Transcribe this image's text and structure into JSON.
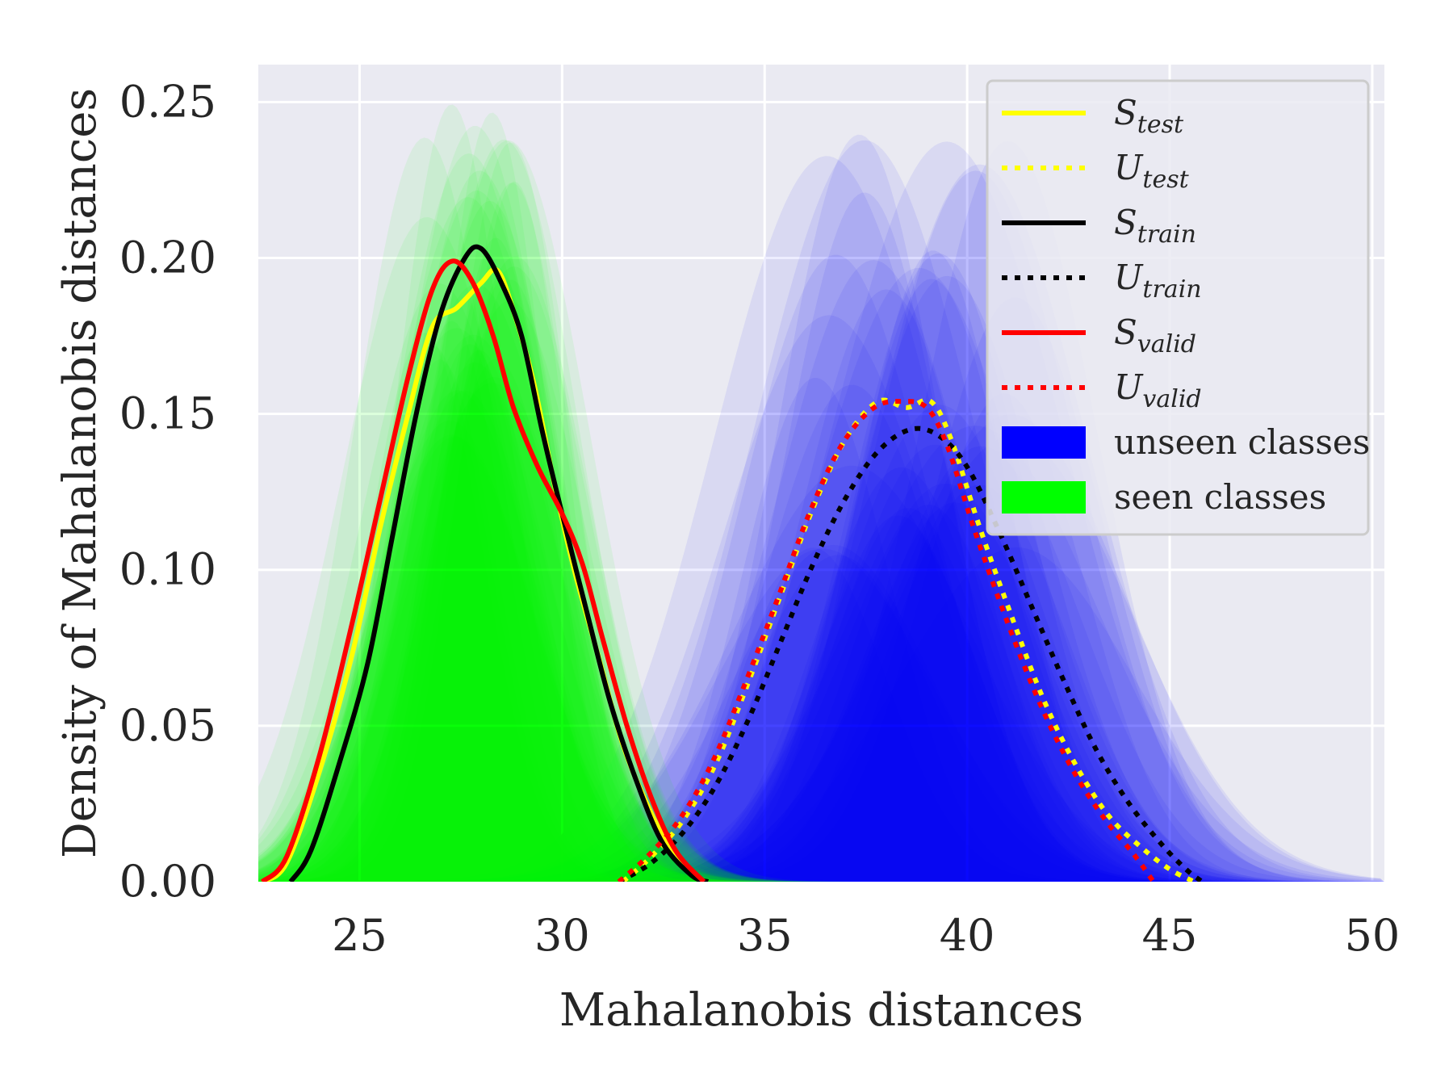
{
  "chart_data": {
    "type": "area",
    "xlabel": "Mahalanobis distances",
    "ylabel": "Density of Mahalanobis distances",
    "xlim": [
      22.5,
      50.3
    ],
    "ylim": [
      0,
      0.262
    ],
    "x_ticks": [
      "25",
      "30",
      "35",
      "40",
      "45",
      "50"
    ],
    "x_tick_values": [
      25,
      30,
      35,
      40,
      45,
      50
    ],
    "y_ticks": [
      "0.00",
      "0.05",
      "0.10",
      "0.15",
      "0.20",
      "0.25"
    ],
    "y_tick_values": [
      0,
      0.05,
      0.1,
      0.15,
      0.2,
      0.25
    ],
    "grid": true,
    "legend_position": "top-right",
    "colors": {
      "background": "#EAEAF2",
      "grid": "#FFFFFF",
      "seen": "#00FF00",
      "unseen": "#0000FF",
      "test": "#FFFF00",
      "train": "#000000",
      "valid": "#FF0000"
    },
    "series": [
      {
        "name": "S",
        "subscript": "test",
        "style": "solid",
        "color": "#FFFF00",
        "points": [
          [
            22.6,
            0
          ],
          [
            23.2,
            0.006
          ],
          [
            24.0,
            0.035
          ],
          [
            24.8,
            0.072
          ],
          [
            25.5,
            0.113
          ],
          [
            26.2,
            0.15
          ],
          [
            26.8,
            0.178
          ],
          [
            27.4,
            0.184
          ],
          [
            28.0,
            0.192
          ],
          [
            28.4,
            0.196
          ],
          [
            28.8,
            0.183
          ],
          [
            29.3,
            0.16
          ],
          [
            29.8,
            0.128
          ],
          [
            30.3,
            0.1
          ],
          [
            30.9,
            0.072
          ],
          [
            31.5,
            0.044
          ],
          [
            32.2,
            0.022
          ],
          [
            32.9,
            0.006
          ],
          [
            33.5,
            0
          ]
        ]
      },
      {
        "name": "U",
        "subscript": "test",
        "style": "dotted",
        "color": "#FFFF00",
        "points": [
          [
            31.5,
            0
          ],
          [
            32.2,
            0.008
          ],
          [
            33.0,
            0.02
          ],
          [
            33.8,
            0.038
          ],
          [
            34.6,
            0.064
          ],
          [
            35.4,
            0.092
          ],
          [
            36.2,
            0.12
          ],
          [
            37.0,
            0.142
          ],
          [
            37.8,
            0.154
          ],
          [
            38.5,
            0.152
          ],
          [
            39.1,
            0.154
          ],
          [
            39.6,
            0.142
          ],
          [
            40.3,
            0.114
          ],
          [
            41.1,
            0.085
          ],
          [
            41.9,
            0.058
          ],
          [
            42.7,
            0.037
          ],
          [
            43.5,
            0.021
          ],
          [
            44.3,
            0.011
          ],
          [
            45.0,
            0.004
          ],
          [
            45.6,
            0
          ]
        ]
      },
      {
        "name": "S",
        "subscript": "train",
        "style": "solid",
        "color": "#000000",
        "points": [
          [
            23.3,
            0
          ],
          [
            23.8,
            0.01
          ],
          [
            24.5,
            0.038
          ],
          [
            25.2,
            0.07
          ],
          [
            25.8,
            0.11
          ],
          [
            26.4,
            0.15
          ],
          [
            27.0,
            0.182
          ],
          [
            27.6,
            0.2
          ],
          [
            28.0,
            0.203
          ],
          [
            28.5,
            0.192
          ],
          [
            29.0,
            0.175
          ],
          [
            29.5,
            0.145
          ],
          [
            30.0,
            0.118
          ],
          [
            30.6,
            0.087
          ],
          [
            31.2,
            0.057
          ],
          [
            31.9,
            0.03
          ],
          [
            32.5,
            0.012
          ],
          [
            33.2,
            0.002
          ],
          [
            33.6,
            0
          ]
        ]
      },
      {
        "name": "U",
        "subscript": "train",
        "style": "dotted",
        "color": "#000000",
        "points": [
          [
            31.4,
            0
          ],
          [
            32.2,
            0.006
          ],
          [
            33.0,
            0.016
          ],
          [
            33.8,
            0.031
          ],
          [
            34.6,
            0.052
          ],
          [
            35.4,
            0.077
          ],
          [
            36.2,
            0.102
          ],
          [
            37.0,
            0.123
          ],
          [
            37.8,
            0.138
          ],
          [
            38.6,
            0.145
          ],
          [
            39.3,
            0.143
          ],
          [
            40.0,
            0.133
          ],
          [
            40.8,
            0.112
          ],
          [
            41.6,
            0.088
          ],
          [
            42.4,
            0.064
          ],
          [
            43.2,
            0.042
          ],
          [
            44.0,
            0.025
          ],
          [
            44.8,
            0.012
          ],
          [
            45.4,
            0.004
          ],
          [
            45.8,
            0
          ]
        ]
      },
      {
        "name": "S",
        "subscript": "valid",
        "style": "solid",
        "color": "#FF0000",
        "points": [
          [
            22.6,
            0
          ],
          [
            23.2,
            0.008
          ],
          [
            24.0,
            0.04
          ],
          [
            24.8,
            0.082
          ],
          [
            25.5,
            0.122
          ],
          [
            26.2,
            0.162
          ],
          [
            26.8,
            0.19
          ],
          [
            27.3,
            0.199
          ],
          [
            27.8,
            0.192
          ],
          [
            28.3,
            0.175
          ],
          [
            28.8,
            0.152
          ],
          [
            29.4,
            0.133
          ],
          [
            30.0,
            0.118
          ],
          [
            30.5,
            0.102
          ],
          [
            31.0,
            0.078
          ],
          [
            31.6,
            0.05
          ],
          [
            32.2,
            0.027
          ],
          [
            32.8,
            0.01
          ],
          [
            33.5,
            0
          ]
        ]
      },
      {
        "name": "U",
        "subscript": "valid",
        "style": "dotted",
        "color": "#FF0000",
        "points": [
          [
            31.4,
            0
          ],
          [
            32.1,
            0.008
          ],
          [
            32.9,
            0.02
          ],
          [
            33.7,
            0.038
          ],
          [
            34.5,
            0.063
          ],
          [
            35.3,
            0.09
          ],
          [
            36.1,
            0.118
          ],
          [
            36.9,
            0.14
          ],
          [
            37.7,
            0.152
          ],
          [
            38.4,
            0.154
          ],
          [
            39.0,
            0.152
          ],
          [
            39.5,
            0.14
          ],
          [
            40.2,
            0.112
          ],
          [
            41.0,
            0.083
          ],
          [
            41.8,
            0.057
          ],
          [
            42.6,
            0.036
          ],
          [
            43.4,
            0.02
          ],
          [
            44.1,
            0.009
          ],
          [
            44.6,
            0
          ]
        ]
      },
      {
        "name": "unseen classes",
        "style": "fill",
        "color": "#0000FF",
        "kde": {
          "mean_range": [
            36.0,
            41.5
          ],
          "sd_range": [
            1.8,
            3.0
          ],
          "peak_range": [
            0.1,
            0.24
          ],
          "count": 40
        }
      },
      {
        "name": "seen classes",
        "style": "fill",
        "color": "#00FF00",
        "kde": {
          "mean_range": [
            26.6,
            29.0
          ],
          "sd_range": [
            1.3,
            2.2
          ],
          "peak_range": [
            0.14,
            0.25
          ],
          "count": 40
        }
      }
    ]
  }
}
